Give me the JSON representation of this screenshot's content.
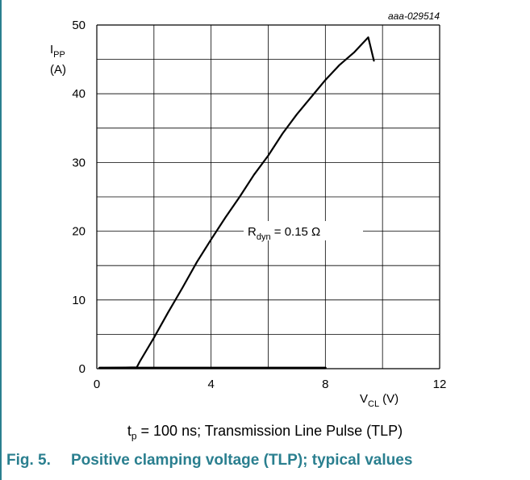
{
  "chart_data": {
    "type": "line",
    "code": "aaa-029514",
    "xlabel": {
      "main": "V",
      "sub": "CL",
      "unit": "(V)"
    },
    "ylabel": {
      "main": "I",
      "sub": "PP",
      "unit": "(A)"
    },
    "xlim": [
      0,
      12
    ],
    "ylim": [
      0,
      50
    ],
    "xticks": [
      "0",
      "4",
      "8",
      "12"
    ],
    "yticks": [
      "0",
      "10",
      "20",
      "30",
      "40",
      "50"
    ],
    "grid": true,
    "annotation": {
      "main": "R",
      "sub": "dyn",
      "rest": " = 0.15 Ω"
    },
    "series": [
      {
        "x": [
          0.1,
          1.4,
          1.5,
          2.0,
          2.5,
          3.0,
          3.5,
          4.0,
          4.5,
          5.0,
          5.5,
          6.0,
          6.5,
          7.0,
          7.5,
          8.0,
          8.5,
          9.0,
          9.5,
          9.7
        ],
        "y": [
          0.1,
          0.2,
          1.0,
          4.5,
          8.2,
          11.8,
          15.5,
          18.8,
          22.0,
          25.0,
          28.2,
          31.0,
          34.2,
          37.0,
          39.5,
          42.0,
          44.2,
          46.0,
          48.2,
          44.8
        ]
      },
      {
        "x": [
          0.1,
          8.0
        ],
        "y": [
          0.1,
          0.1
        ]
      }
    ]
  },
  "condition": {
    "main": "t",
    "sub": "p",
    "rest": " = 100 ns; Transmission Line Pulse (TLP)"
  },
  "caption": {
    "number": "Fig. 5.",
    "text": "Positive clamping voltage (TLP); typical values"
  }
}
